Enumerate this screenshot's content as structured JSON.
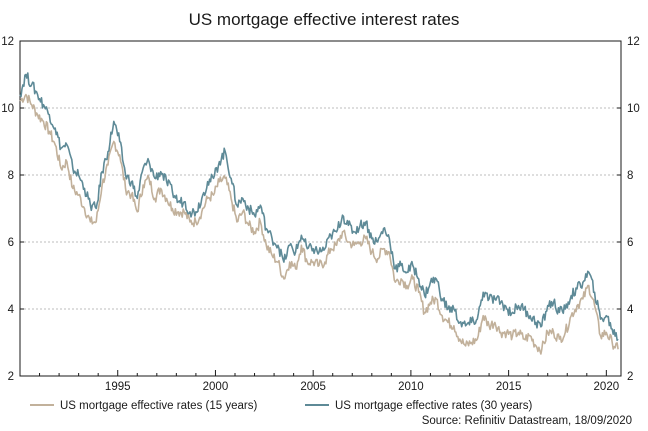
{
  "chart_data": {
    "type": "line",
    "title": "US mortgage effective interest rates",
    "xlabel": "",
    "ylabel": "",
    "xlim": [
      1990.0,
      2020.75
    ],
    "ylim": [
      2,
      12
    ],
    "y_ticks": [
      2,
      4,
      6,
      8,
      10,
      12
    ],
    "x_ticks": [
      1995,
      2000,
      2005,
      2010,
      2015,
      2020
    ],
    "grid": "horizontal-dashed",
    "source": "Source: Refinitiv Datastream, 18/09/2020",
    "series": [
      {
        "name": "US mortgage effective rates (15 years)",
        "color": "#c2b19b",
        "x": [
          1990.0,
          1990.3,
          1990.6,
          1990.9,
          1991.2,
          1991.5,
          1991.8,
          1992.1,
          1992.4,
          1992.7,
          1993.0,
          1993.3,
          1993.6,
          1993.9,
          1994.2,
          1994.5,
          1994.8,
          1995.1,
          1995.4,
          1995.7,
          1996.0,
          1996.3,
          1996.6,
          1996.9,
          1997.2,
          1997.5,
          1997.8,
          1998.1,
          1998.4,
          1998.7,
          1999.0,
          1999.3,
          1999.6,
          1999.9,
          2000.2,
          2000.5,
          2000.8,
          2001.1,
          2001.4,
          2001.7,
          2002.0,
          2002.3,
          2002.6,
          2002.9,
          2003.2,
          2003.5,
          2003.8,
          2004.1,
          2004.4,
          2004.7,
          2005.0,
          2005.3,
          2005.6,
          2005.9,
          2006.2,
          2006.5,
          2006.8,
          2007.1,
          2007.4,
          2007.7,
          2008.0,
          2008.3,
          2008.6,
          2008.9,
          2009.2,
          2009.5,
          2009.8,
          2010.1,
          2010.4,
          2010.7,
          2011.0,
          2011.3,
          2011.6,
          2011.9,
          2012.2,
          2012.5,
          2012.8,
          2013.1,
          2013.4,
          2013.7,
          2014.0,
          2014.3,
          2014.6,
          2014.9,
          2015.2,
          2015.5,
          2015.8,
          2016.1,
          2016.4,
          2016.7,
          2017.0,
          2017.3,
          2017.6,
          2017.9,
          2018.2,
          2018.5,
          2018.8,
          2019.1,
          2019.4,
          2019.7,
          2020.0,
          2020.3,
          2020.6
        ],
        "values": [
          10.2,
          10.4,
          10.1,
          9.8,
          9.6,
          9.3,
          8.9,
          8.2,
          8.4,
          7.6,
          7.4,
          7.0,
          6.6,
          6.6,
          7.7,
          8.3,
          9.0,
          8.6,
          7.6,
          7.4,
          6.9,
          7.7,
          7.9,
          7.3,
          7.6,
          7.3,
          7.0,
          6.9,
          6.9,
          6.6,
          6.6,
          6.9,
          7.3,
          7.4,
          7.8,
          7.9,
          7.3,
          6.6,
          6.9,
          6.5,
          6.3,
          6.6,
          5.9,
          5.6,
          5.4,
          4.9,
          5.4,
          5.2,
          5.9,
          5.4,
          5.4,
          5.3,
          5.4,
          5.8,
          5.9,
          6.3,
          6.0,
          5.9,
          6.0,
          6.1,
          5.7,
          5.5,
          5.8,
          5.7,
          4.8,
          4.9,
          4.7,
          4.9,
          4.5,
          3.9,
          4.2,
          4.3,
          3.8,
          3.6,
          3.5,
          3.1,
          2.9,
          3.0,
          3.1,
          3.8,
          3.5,
          3.6,
          3.3,
          3.3,
          3.2,
          3.3,
          3.1,
          3.2,
          2.9,
          2.8,
          3.3,
          3.3,
          3.1,
          3.3,
          3.8,
          4.1,
          4.3,
          4.7,
          4.1,
          3.2,
          3.3,
          3.0,
          2.8
        ]
      },
      {
        "name": "US mortgage effective rates (30 years)",
        "color": "#5e8a97",
        "x": [
          1990.0,
          1990.3,
          1990.6,
          1990.9,
          1991.2,
          1991.5,
          1991.8,
          1992.1,
          1992.4,
          1992.7,
          1993.0,
          1993.3,
          1993.6,
          1993.9,
          1994.2,
          1994.5,
          1994.8,
          1995.1,
          1995.4,
          1995.7,
          1996.0,
          1996.3,
          1996.6,
          1996.9,
          1997.2,
          1997.5,
          1997.8,
          1998.1,
          1998.4,
          1998.7,
          1999.0,
          1999.3,
          1999.6,
          1999.9,
          2000.2,
          2000.5,
          2000.8,
          2001.1,
          2001.4,
          2001.7,
          2002.0,
          2002.3,
          2002.6,
          2002.9,
          2003.2,
          2003.5,
          2003.8,
          2004.1,
          2004.4,
          2004.7,
          2005.0,
          2005.3,
          2005.6,
          2005.9,
          2006.2,
          2006.5,
          2006.8,
          2007.1,
          2007.4,
          2007.7,
          2008.0,
          2008.3,
          2008.6,
          2008.9,
          2009.2,
          2009.5,
          2009.8,
          2010.1,
          2010.4,
          2010.7,
          2011.0,
          2011.3,
          2011.6,
          2011.9,
          2012.2,
          2012.5,
          2012.8,
          2013.1,
          2013.4,
          2013.7,
          2014.0,
          2014.3,
          2014.6,
          2014.9,
          2015.2,
          2015.5,
          2015.8,
          2016.1,
          2016.4,
          2016.7,
          2017.0,
          2017.3,
          2017.6,
          2017.9,
          2018.2,
          2018.5,
          2018.8,
          2019.1,
          2019.4,
          2019.7,
          2020.0,
          2020.3,
          2020.6
        ],
        "values": [
          10.4,
          11.0,
          10.7,
          10.4,
          10.1,
          9.8,
          9.4,
          8.8,
          8.9,
          8.2,
          8.0,
          7.6,
          7.1,
          7.0,
          8.1,
          8.7,
          9.6,
          9.0,
          8.0,
          7.8,
          7.3,
          8.2,
          8.4,
          7.9,
          8.1,
          7.8,
          7.5,
          7.2,
          7.2,
          6.9,
          6.9,
          7.3,
          7.8,
          7.9,
          8.4,
          8.7,
          7.9,
          7.1,
          7.3,
          7.0,
          6.8,
          7.1,
          6.4,
          6.1,
          5.9,
          5.4,
          5.9,
          5.7,
          6.2,
          5.8,
          5.8,
          5.7,
          5.8,
          6.2,
          6.3,
          6.8,
          6.5,
          6.3,
          6.5,
          6.6,
          6.1,
          6.0,
          6.4,
          6.1,
          5.2,
          5.3,
          5.1,
          5.3,
          4.9,
          4.4,
          4.8,
          4.9,
          4.3,
          4.0,
          4.0,
          3.6,
          3.5,
          3.6,
          3.7,
          4.5,
          4.3,
          4.3,
          4.2,
          4.0,
          3.9,
          4.1,
          4.0,
          3.8,
          3.6,
          3.5,
          4.1,
          4.2,
          3.9,
          4.0,
          4.4,
          4.6,
          4.8,
          5.1,
          4.5,
          3.7,
          3.8,
          3.4,
          3.1
        ]
      }
    ]
  }
}
